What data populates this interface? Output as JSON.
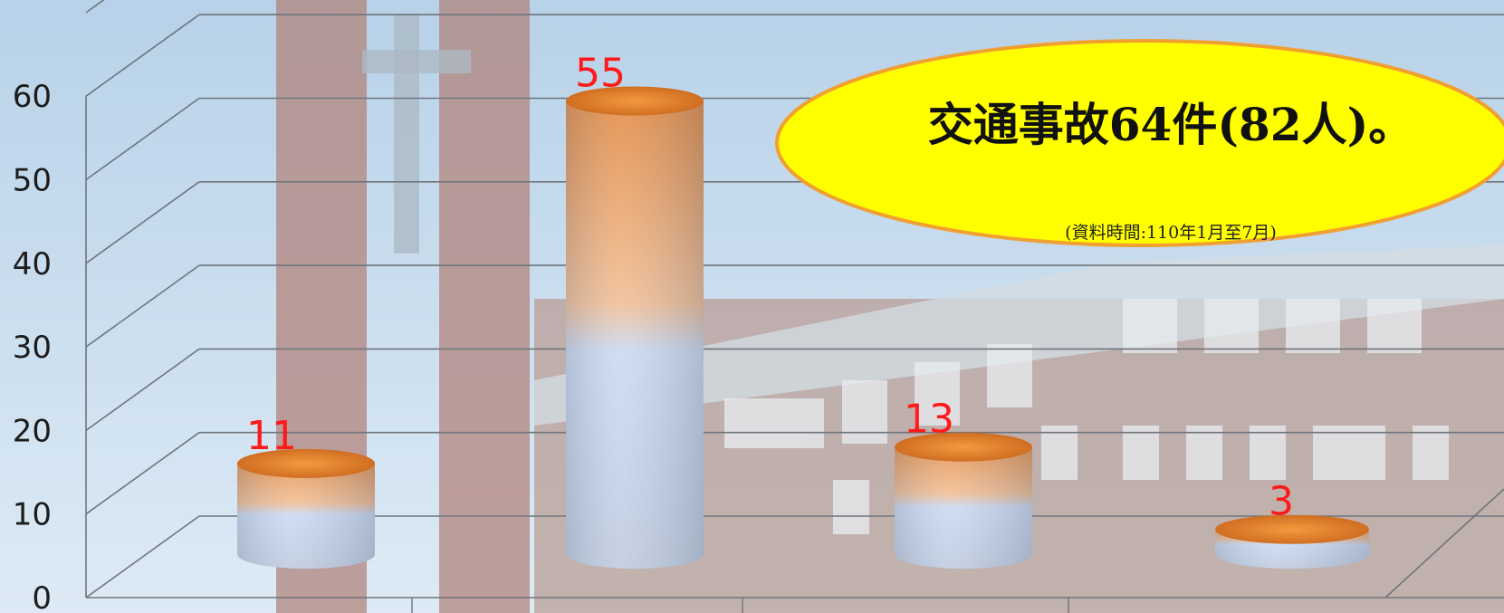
{
  "chart_data": {
    "type": "bar",
    "style": "3d-cylinder",
    "categories": [
      "",
      "",
      "",
      ""
    ],
    "values": [
      11,
      55,
      13,
      3
    ],
    "data_labels": [
      "11",
      "55",
      "13",
      "3"
    ],
    "title": "",
    "xlabel": "",
    "ylabel": "",
    "ylim": [
      0,
      70
    ],
    "yticks": [
      0,
      10,
      20,
      30,
      40,
      50,
      60
    ],
    "grid": true,
    "legend": "none",
    "colors": {
      "top": "#e07a28",
      "bottom": "#c5d6f2",
      "label": "#ff1a1a"
    }
  },
  "callout": {
    "title": "交通事故64件(82人)。",
    "note": "(資料時間:110年1月至7月)",
    "fill": "#ffff00",
    "border": "#f0a030"
  }
}
